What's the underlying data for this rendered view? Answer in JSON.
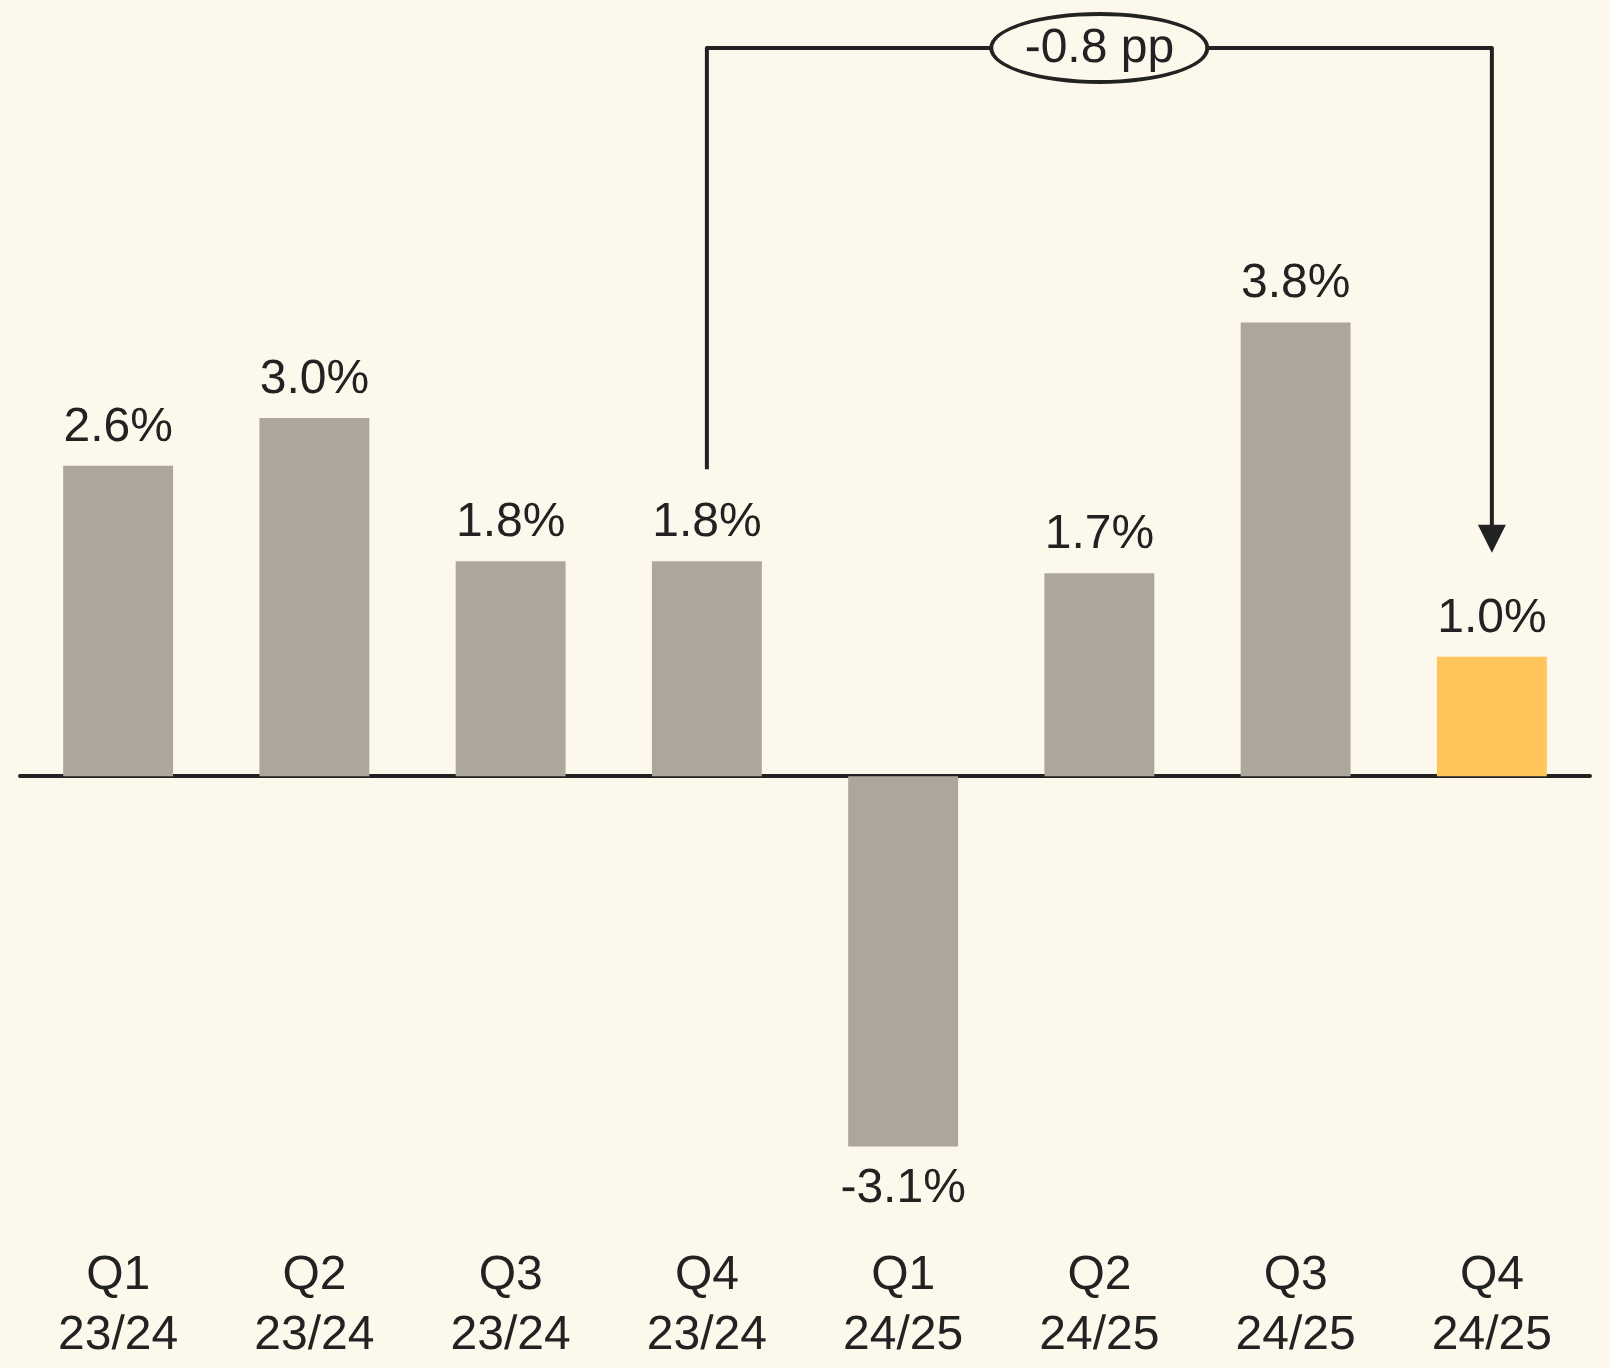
{
  "chart_data": {
    "type": "bar",
    "categories": [
      "Q1\n23/24",
      "Q2\n23/24",
      "Q3\n23/24",
      "Q4\n23/24",
      "Q1\n24/25",
      "Q2\n24/25",
      "Q3\n24/25",
      "Q4\n24/25"
    ],
    "values": [
      2.6,
      3.0,
      1.8,
      1.8,
      -3.1,
      1.7,
      3.8,
      1.0
    ],
    "value_labels": [
      "2.6%",
      "3.0%",
      "1.8%",
      "1.8%",
      "-3.1%",
      "1.7%",
      "3.8%",
      "1.0%"
    ],
    "colors": [
      "#aca69c",
      "#aca69c",
      "#aca69c",
      "#aca69c",
      "#aca69c",
      "#aca69c",
      "#aca69c",
      "#ffc45a"
    ],
    "annotations": [
      "-0.8 pp"
    ]
  }
}
